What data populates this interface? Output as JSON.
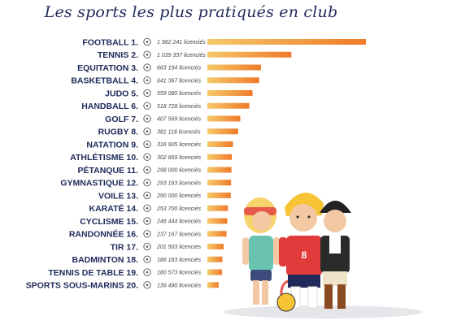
{
  "chart_data": {
    "type": "bar",
    "title": "Les sports les plus pratiqués en club",
    "orientation": "horizontal",
    "value_suffix": " licenciés",
    "categories": [
      "FOOTBALL 1.",
      "TENNIS 2.",
      "EQUITATION 3.",
      "BASKETBALL 4.",
      "JUDO 5.",
      "HANDBALL 6.",
      "GOLF 7.",
      "RUGBY 8.",
      "NATATION 9.",
      "ATHLÉTISME 10.",
      "PÉTANQUE 11.",
      "GYMNASTIQUE 12.",
      "VOILE 13.",
      "KARATÉ 14.",
      "CYCLISME 15.",
      "RANDONNÉE 16.",
      "TIR 17.",
      "BADMINTON 18.",
      "TENNIS DE TABLE 19.",
      "SPORTS SOUS-MARINS 20."
    ],
    "values": [
      1962241,
      1039337,
      663194,
      641367,
      559080,
      518728,
      407569,
      381118,
      316905,
      302869,
      298000,
      293163,
      290000,
      253700,
      246444,
      237167,
      201503,
      186183,
      180573,
      139490
    ],
    "value_labels": [
      "1 962 241 licenciés",
      "1 039 337 licenciés",
      "663 194 licenciés",
      "641 367 licenciés",
      "559 080 licenciés",
      "518 728 licenciés",
      "407 569 licenciés",
      "381 118 licenciés",
      "316 905 licenciés",
      "302 869 licenciés",
      "298 000 licenciés",
      "293 163 licenciés",
      "290 000 licenciés",
      "253 700 licenciés",
      "246 444 licenciés",
      "237 167 licenciés",
      "201 503 licenciés",
      "186 183 licenciés",
      "180 573 licenciés",
      "139 490 licenciés"
    ],
    "icons": [
      "soccer-ball-icon",
      "tennis-racket-icon",
      "horseshoe-icon",
      "basketball-icon",
      "judo-icon",
      "handball-icon",
      "golf-icon",
      "rugby-icon",
      "swimming-icon",
      "running-shoe-icon",
      "petanque-balls-icon",
      "gymnast-icon",
      "sailboat-icon",
      "karate-icon",
      "bicycle-icon",
      "hiking-boot-icon",
      "target-rifle-icon",
      "shuttlecock-icon",
      "ping-pong-icon",
      "diving-mask-icon"
    ],
    "bar_gradient": [
      "#f5c96a",
      "#f07a2a"
    ],
    "label_colors": [
      "#111111",
      "#1f2a5a"
    ],
    "xlim": [
      0,
      1962241
    ],
    "grid": false,
    "legend": "none"
  }
}
